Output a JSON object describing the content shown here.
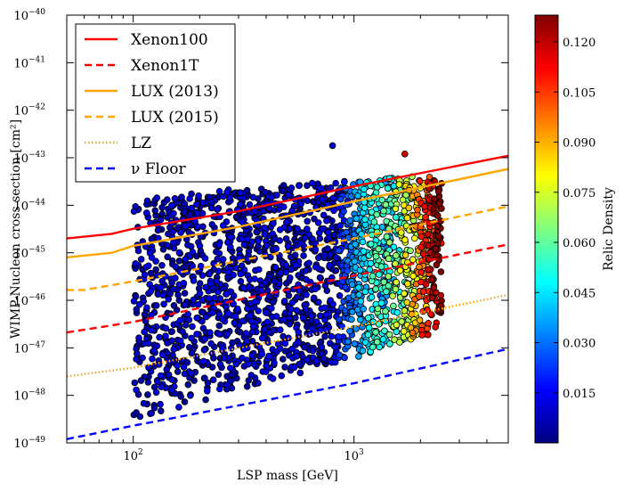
{
  "chart_data": {
    "type": "scatter",
    "title": "",
    "xlabel": "LSP mass [GeV]",
    "ylabel": "WIMP-Nucleon cross section [cm²]",
    "x_scale": "log",
    "y_scale": "log",
    "xlim": [
      50,
      5000
    ],
    "ylim": [
      1e-49,
      1e-40
    ],
    "x_ticks": [
      {
        "value": 100,
        "base": "10",
        "exp": "2"
      },
      {
        "value": 1000,
        "base": "10",
        "exp": "3"
      }
    ],
    "y_ticks": [
      {
        "value": 1e-49,
        "base": "10",
        "exp": "−49"
      },
      {
        "value": 1e-48,
        "base": "10",
        "exp": "−48"
      },
      {
        "value": 1e-47,
        "base": "10",
        "exp": "−47"
      },
      {
        "value": 1e-46,
        "base": "10",
        "exp": "−46"
      },
      {
        "value": 1e-45,
        "base": "10",
        "exp": "−45"
      },
      {
        "value": 1e-44,
        "base": "10",
        "exp": "−44"
      },
      {
        "value": 1e-43,
        "base": "10",
        "exp": "−43"
      },
      {
        "value": 1e-42,
        "base": "10",
        "exp": "−42"
      },
      {
        "value": 1e-41,
        "base": "10",
        "exp": "−41"
      },
      {
        "value": 1e-40,
        "base": "10",
        "exp": "−40"
      }
    ],
    "colorbar": {
      "label": "Relic Density",
      "min": 0.0,
      "max": 0.128,
      "ticks": [
        "0.015",
        "0.030",
        "0.045",
        "0.060",
        "0.075",
        "0.090",
        "0.105",
        "0.120"
      ]
    },
    "legend": {
      "placement": "top-left",
      "entries": [
        {
          "label": "Xenon100",
          "style": "solid",
          "color": "#ff0000"
        },
        {
          "label": "Xenon1T",
          "style": "dashed",
          "color": "#ff0000"
        },
        {
          "label": "LUX (2013)",
          "style": "solid",
          "color": "#ffa500"
        },
        {
          "label": "LUX (2015)",
          "style": "dashed",
          "color": "#ffa500"
        },
        {
          "label": "LZ",
          "style": "dotted",
          "color": "#ffa500"
        },
        {
          "label": "ν Floor",
          "style": "dashed",
          "color": "#0000ff"
        }
      ]
    },
    "series": [
      {
        "name": "Xenon100",
        "style": "solid",
        "color": "#ff0000",
        "points": [
          [
            50,
            2e-45
          ],
          [
            80,
            2.5e-45
          ],
          [
            100,
            3.2e-45
          ],
          [
            300,
            7.5e-45
          ],
          [
            1000,
            2.5e-44
          ],
          [
            5000,
            1.1e-43
          ]
        ]
      },
      {
        "name": "Xenon1T",
        "style": "dashed",
        "color": "#ff0000",
        "points": [
          [
            50,
            2.1e-47
          ],
          [
            100,
            3.5e-47
          ],
          [
            1000,
            3.3e-46
          ],
          [
            5000,
            1.5e-45
          ]
        ]
      },
      {
        "name": "LUX (2013)",
        "style": "solid",
        "color": "#ffa500",
        "points": [
          [
            50,
            8e-46
          ],
          [
            80,
            1e-45
          ],
          [
            100,
            1.4e-45
          ],
          [
            300,
            3.5e-45
          ],
          [
            1000,
            1.2e-44
          ],
          [
            5000,
            5.8e-44
          ]
        ]
      },
      {
        "name": "LUX (2015)",
        "style": "dashed",
        "color": "#ffa500",
        "points": [
          [
            50,
            1.65e-46
          ],
          [
            60,
            1.65e-46
          ],
          [
            100,
            2.5e-46
          ],
          [
            1000,
            2e-45
          ],
          [
            5000,
            9.5e-45
          ]
        ]
      },
      {
        "name": "LZ",
        "style": "dotted",
        "color": "#ffa500",
        "points": [
          [
            50,
            2.5e-48
          ],
          [
            100,
            3.8e-48
          ],
          [
            1000,
            2.8e-47
          ],
          [
            5000,
            1.3e-46
          ]
        ]
      },
      {
        "name": "ν Floor",
        "style": "dashed",
        "color": "#0000ff",
        "points": [
          [
            50,
            1.2e-49
          ],
          [
            100,
            2.3e-49
          ],
          [
            1000,
            1.8e-48
          ],
          [
            5000,
            9.5e-48
          ]
        ]
      }
    ],
    "scatter": {
      "name": "model points",
      "colored_by": "Relic Density",
      "approx_count": 2200,
      "x_range": [
        100,
        2500
      ],
      "y_range": [
        4e-49,
        3e-43
      ],
      "note": "dense cloud, low relic density (blue) at low mass, rising to red near 2 TeV",
      "sample_points": [
        [
          800,
          1.8e-43,
          0.01
        ],
        [
          1700,
          1.2e-43,
          0.118
        ],
        [
          105,
          8e-45,
          0.005
        ],
        [
          200,
          6e-45,
          0.006
        ]
      ]
    }
  }
}
